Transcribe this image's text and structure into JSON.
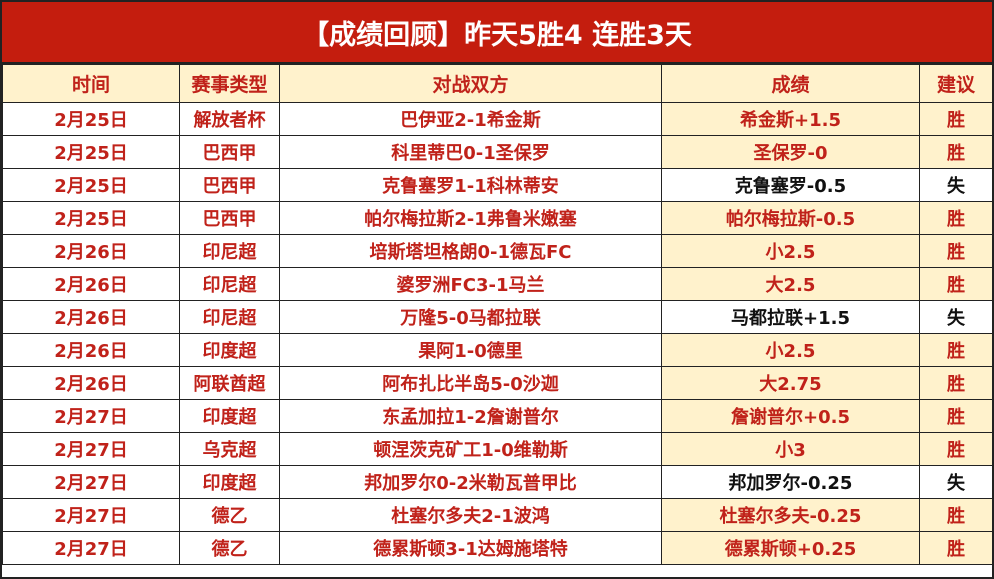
{
  "title": "【成绩回顾】昨天5胜4 连胜3天",
  "colors": {
    "title_bg": "#c41d0e",
    "header_bg": "#fff2cc",
    "text_red": "#c0221a",
    "loss_text": "#111111"
  },
  "headers": [
    "时间",
    "赛事类型",
    "对战双方",
    "成绩",
    "建议"
  ],
  "rows": [
    {
      "date": "2月25日",
      "league": "解放者杯",
      "match": "巴伊亚2-1希金斯",
      "pick": "希金斯+1.5",
      "result": "胜"
    },
    {
      "date": "2月25日",
      "league": "巴西甲",
      "match": "科里蒂巴0-1圣保罗",
      "pick": "圣保罗-0",
      "result": "胜"
    },
    {
      "date": "2月25日",
      "league": "巴西甲",
      "match": "克鲁塞罗1-1科林蒂安",
      "pick": "克鲁塞罗-0.5",
      "result": "失"
    },
    {
      "date": "2月25日",
      "league": "巴西甲",
      "match": "帕尔梅拉斯2-1弗鲁米嫩塞",
      "pick": "帕尔梅拉斯-0.5",
      "result": "胜"
    },
    {
      "date": "2月26日",
      "league": "印尼超",
      "match": "培斯塔坦格朗0-1德瓦FC",
      "pick": "小2.5",
      "result": "胜"
    },
    {
      "date": "2月26日",
      "league": "印尼超",
      "match": "婆罗洲FC3-1马兰",
      "pick": "大2.5",
      "result": "胜"
    },
    {
      "date": "2月26日",
      "league": "印尼超",
      "match": "万隆5-0马都拉联",
      "pick": "马都拉联+1.5",
      "result": "失"
    },
    {
      "date": "2月26日",
      "league": "印度超",
      "match": "果阿1-0德里",
      "pick": "小2.5",
      "result": "胜"
    },
    {
      "date": "2月26日",
      "league": "阿联酋超",
      "match": "阿布扎比半岛5-0沙迦",
      "pick": "大2.75",
      "result": "胜"
    },
    {
      "date": "2月27日",
      "league": "印度超",
      "match": "东孟加拉1-2詹谢普尔",
      "pick": "詹谢普尔+0.5",
      "result": "胜"
    },
    {
      "date": "2月27日",
      "league": "乌克超",
      "match": "顿涅茨克矿工1-0维勒斯",
      "pick": "小3",
      "result": "胜"
    },
    {
      "date": "2月27日",
      "league": "印度超",
      "match": "邦加罗尔0-2米勒瓦普甲比",
      "pick": "邦加罗尔-0.25",
      "result": "失"
    },
    {
      "date": "2月27日",
      "league": "德乙",
      "match": "杜塞尔多夫2-1波鸿",
      "pick": "杜塞尔多夫-0.25",
      "result": "胜"
    },
    {
      "date": "2月27日",
      "league": "德乙",
      "match": "德累斯顿3-1达姆施塔特",
      "pick": "德累斯顿+0.25",
      "result": "胜"
    }
  ]
}
